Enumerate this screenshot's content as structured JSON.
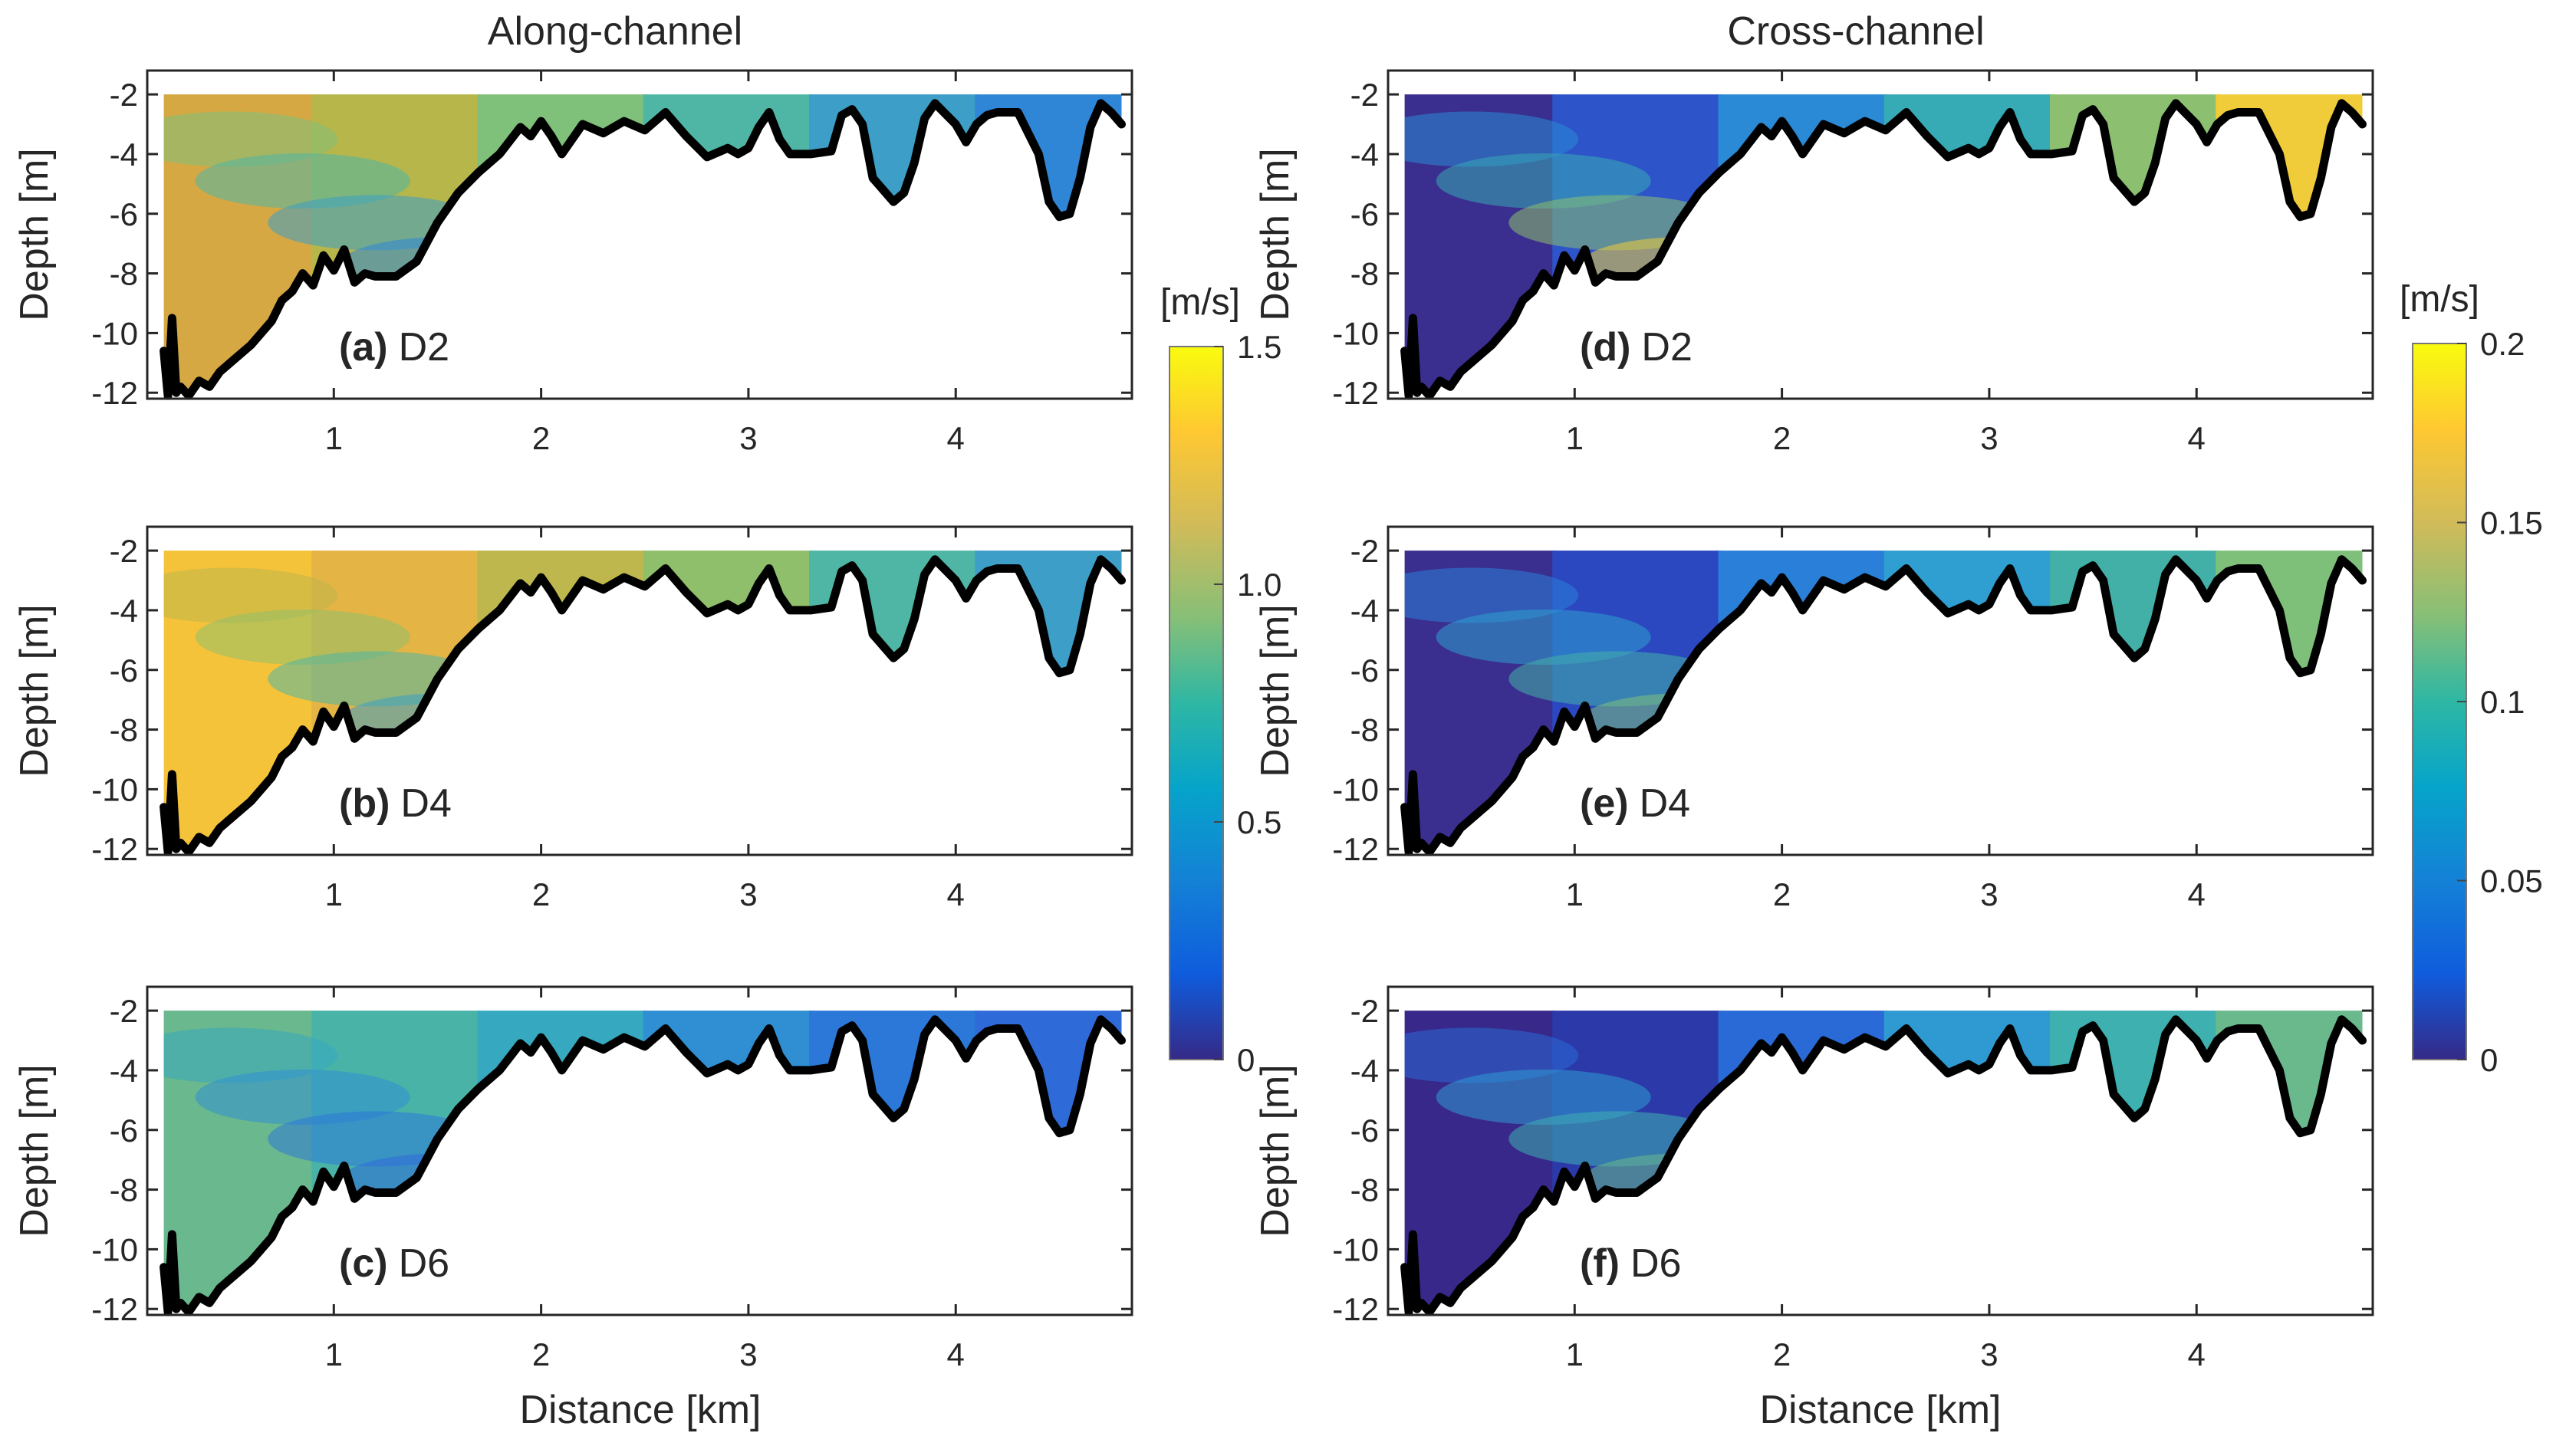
{
  "chart_data": {
    "type": "heatmap",
    "columns": [
      {
        "title": "Along-channel",
        "colorbar": {
          "unit": "[m/s]",
          "ticks": [
            "0",
            "0.5",
            "1.0",
            "1.5"
          ],
          "range": [
            0,
            1.5
          ]
        },
        "panels": [
          {
            "label": "(a)",
            "name": "D2",
            "colors": [
              "#d6a844",
              "#b7b64a",
              "#7fc07a",
              "#4fb6a6",
              "#3d9ec7",
              "#2f86d6"
            ]
          },
          {
            "label": "(b)",
            "name": "D4",
            "colors": [
              "#f5c33a",
              "#e4b444",
              "#bdb74d",
              "#8fbf6a",
              "#4fb6a6",
              "#3d9ec7"
            ]
          },
          {
            "label": "(c)",
            "name": "D6",
            "colors": [
              "#6ab88d",
              "#49b3a8",
              "#36a8bf",
              "#2f8fd2",
              "#2b78d9",
              "#2f6ad9"
            ]
          }
        ]
      },
      {
        "title": "Cross-channel",
        "colorbar": {
          "unit": "[m/s]",
          "ticks": [
            "0",
            "0.05",
            "0.1",
            "0.15",
            "0.2"
          ],
          "range": [
            0,
            0.2
          ]
        },
        "panels": [
          {
            "label": "(d)",
            "name": "D2",
            "colors": [
              "#3a2f8f",
              "#2d54c9",
              "#2a8ad6",
              "#36aab5",
              "#8cc070",
              "#f0cc3a"
            ]
          },
          {
            "label": "(e)",
            "name": "D4",
            "colors": [
              "#3a2f8f",
              "#2b48c0",
              "#2a7fd8",
              "#2f9ed0",
              "#43b0a7",
              "#7ec07a"
            ]
          },
          {
            "label": "(f)",
            "name": "D6",
            "colors": [
              "#38288a",
              "#2b3aa8",
              "#2a6ad6",
              "#2f9ad2",
              "#3eb0b0",
              "#6ab98c"
            ]
          }
        ]
      }
    ],
    "xlabel": "Distance [km]",
    "ylabel": "Depth [m]",
    "xlim": [
      0.1,
      4.85
    ],
    "ylim": [
      -12.2,
      -1.2
    ],
    "xticks": [
      1,
      2,
      3,
      4
    ],
    "yticks": [
      -2,
      -4,
      -6,
      -8,
      -10,
      -12
    ],
    "bathymetry_x": [
      0.18,
      0.2,
      0.22,
      0.24,
      0.26,
      0.3,
      0.35,
      0.4,
      0.45,
      0.5,
      0.6,
      0.7,
      0.75,
      0.8,
      0.85,
      0.9,
      0.95,
      1.0,
      1.05,
      1.1,
      1.15,
      1.2,
      1.3,
      1.4,
      1.5,
      1.6,
      1.7,
      1.8,
      1.9,
      1.95,
      2.0,
      2.05,
      2.1,
      2.15,
      2.2,
      2.3,
      2.4,
      2.5,
      2.6,
      2.7,
      2.8,
      2.9,
      2.95,
      3.0,
      3.05,
      3.1,
      3.15,
      3.2,
      3.3,
      3.4,
      3.45,
      3.5,
      3.55,
      3.6,
      3.7,
      3.75,
      3.8,
      3.85,
      3.9,
      4.0,
      4.05,
      4.1,
      4.15,
      4.2,
      4.3,
      4.4,
      4.45,
      4.5,
      4.55,
      4.6,
      4.65,
      4.7,
      4.75,
      4.8
    ],
    "bathymetry_y": [
      -10.6,
      -12.1,
      -9.5,
      -12.0,
      -11.8,
      -12.1,
      -11.6,
      -11.8,
      -11.3,
      -11.0,
      -10.4,
      -9.6,
      -8.9,
      -8.6,
      -8.0,
      -8.4,
      -7.4,
      -7.9,
      -7.2,
      -8.3,
      -8.0,
      -8.1,
      -8.1,
      -7.6,
      -6.3,
      -5.3,
      -4.6,
      -4.0,
      -3.1,
      -3.4,
      -2.9,
      -3.4,
      -4.0,
      -3.5,
      -3.0,
      -3.3,
      -2.9,
      -3.2,
      -2.6,
      -3.4,
      -4.1,
      -3.8,
      -4.0,
      -3.8,
      -3.1,
      -2.6,
      -3.5,
      -4.0,
      -4.0,
      -3.9,
      -2.7,
      -2.5,
      -3.0,
      -4.8,
      -5.6,
      -5.3,
      -4.3,
      -2.8,
      -2.3,
      -3.0,
      -3.6,
      -3.0,
      -2.7,
      -2.6,
      -2.6,
      -4.0,
      -5.6,
      -6.1,
      -6.0,
      -4.8,
      -3.1,
      -2.3,
      -2.6,
      -3.0
    ]
  }
}
